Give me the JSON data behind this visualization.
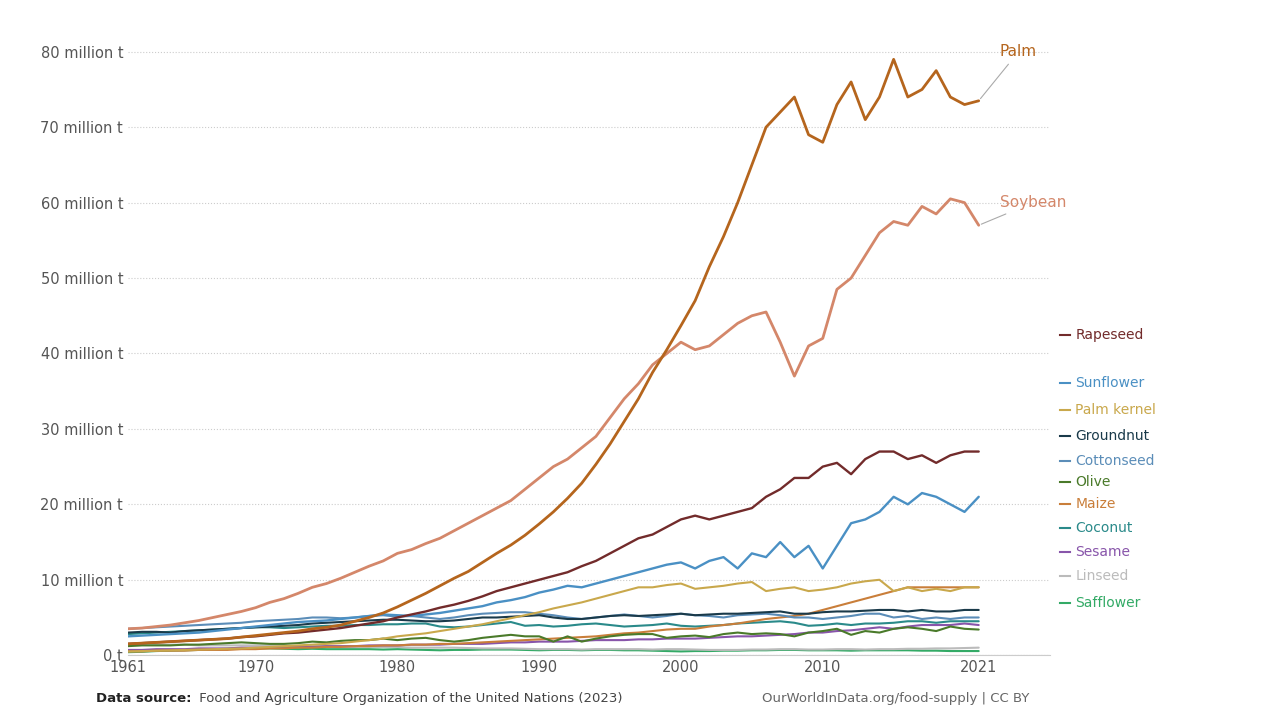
{
  "years": [
    1961,
    1962,
    1963,
    1964,
    1965,
    1966,
    1967,
    1968,
    1969,
    1970,
    1971,
    1972,
    1973,
    1974,
    1975,
    1976,
    1977,
    1978,
    1979,
    1980,
    1981,
    1982,
    1983,
    1984,
    1985,
    1986,
    1987,
    1988,
    1989,
    1990,
    1991,
    1992,
    1993,
    1994,
    1995,
    1996,
    1997,
    1998,
    1999,
    2000,
    2001,
    2002,
    2003,
    2004,
    2005,
    2006,
    2007,
    2008,
    2009,
    2010,
    2011,
    2012,
    2013,
    2014,
    2015,
    2016,
    2017,
    2018,
    2019,
    2020,
    2021
  ],
  "series": {
    "Palm": [
      1.5,
      1.6,
      1.7,
      1.8,
      1.9,
      2.0,
      2.1,
      2.2,
      2.4,
      2.6,
      2.8,
      3.0,
      3.2,
      3.5,
      3.7,
      4.0,
      4.5,
      5.0,
      5.6,
      6.4,
      7.3,
      8.2,
      9.2,
      10.2,
      11.1,
      12.3,
      13.5,
      14.6,
      15.9,
      17.4,
      19.0,
      20.8,
      22.8,
      25.3,
      28.0,
      31.0,
      34.0,
      37.5,
      40.5,
      43.7,
      47.0,
      51.5,
      55.5,
      60.0,
      65.0,
      70.0,
      72.0,
      74.0,
      69.0,
      68.0,
      73.0,
      76.0,
      71.0,
      74.0,
      79.0,
      74.0,
      75.0,
      77.5,
      74.0,
      73.0,
      73.5
    ],
    "Soybean": [
      3.5,
      3.6,
      3.8,
      4.0,
      4.3,
      4.6,
      5.0,
      5.4,
      5.8,
      6.3,
      7.0,
      7.5,
      8.2,
      9.0,
      9.5,
      10.2,
      11.0,
      11.8,
      12.5,
      13.5,
      14.0,
      14.8,
      15.5,
      16.5,
      17.5,
      18.5,
      19.5,
      20.5,
      22.0,
      23.5,
      25.0,
      26.0,
      27.5,
      29.0,
      31.5,
      34.0,
      36.0,
      38.5,
      40.0,
      41.5,
      40.5,
      41.0,
      42.5,
      44.0,
      45.0,
      45.5,
      41.5,
      37.0,
      41.0,
      42.0,
      48.5,
      50.0,
      53.0,
      56.0,
      57.5,
      57.0,
      59.5,
      58.5,
      60.5,
      60.0,
      57.0
    ],
    "Rapeseed": [
      1.5,
      1.6,
      1.7,
      1.8,
      1.9,
      2.0,
      2.1,
      2.2,
      2.4,
      2.5,
      2.7,
      2.9,
      3.0,
      3.2,
      3.4,
      3.6,
      3.9,
      4.2,
      4.5,
      5.0,
      5.4,
      5.8,
      6.3,
      6.7,
      7.2,
      7.8,
      8.5,
      9.0,
      9.5,
      10.0,
      10.5,
      11.0,
      11.8,
      12.5,
      13.5,
      14.5,
      15.5,
      16.0,
      17.0,
      18.0,
      18.5,
      18.0,
      18.5,
      19.0,
      19.5,
      21.0,
      22.0,
      23.5,
      23.5,
      25.0,
      25.5,
      24.0,
      26.0,
      27.0,
      27.0,
      26.0,
      26.5,
      25.5,
      26.5,
      27.0,
      27.0
    ],
    "Sunflower": [
      2.5,
      2.6,
      2.7,
      2.8,
      2.9,
      3.0,
      3.2,
      3.4,
      3.6,
      3.8,
      4.0,
      4.2,
      4.4,
      4.5,
      4.6,
      4.8,
      5.0,
      5.2,
      5.4,
      5.3,
      5.2,
      5.4,
      5.6,
      5.9,
      6.2,
      6.5,
      7.0,
      7.3,
      7.7,
      8.3,
      8.7,
      9.2,
      9.0,
      9.5,
      10.0,
      10.5,
      11.0,
      11.5,
      12.0,
      12.3,
      11.5,
      12.5,
      13.0,
      11.5,
      13.5,
      13.0,
      15.0,
      13.0,
      14.5,
      11.5,
      14.5,
      17.5,
      18.0,
      19.0,
      21.0,
      20.0,
      21.5,
      21.0,
      20.0,
      19.0,
      21.0
    ],
    "Palm kernel": [
      0.5,
      0.55,
      0.6,
      0.65,
      0.7,
      0.75,
      0.8,
      0.85,
      0.9,
      1.0,
      1.1,
      1.2,
      1.3,
      1.4,
      1.5,
      1.6,
      1.8,
      2.0,
      2.2,
      2.5,
      2.7,
      2.9,
      3.2,
      3.5,
      3.8,
      4.1,
      4.5,
      4.9,
      5.3,
      5.7,
      6.2,
      6.6,
      7.0,
      7.5,
      8.0,
      8.5,
      9.0,
      9.0,
      9.3,
      9.5,
      8.8,
      9.0,
      9.2,
      9.5,
      9.7,
      8.5,
      8.8,
      9.0,
      8.5,
      8.7,
      9.0,
      9.5,
      9.8,
      10.0,
      8.5,
      9.0,
      8.5,
      8.8,
      8.5,
      9.0,
      9.0
    ],
    "Groundnut": [
      3.0,
      3.1,
      3.1,
      3.0,
      3.2,
      3.3,
      3.4,
      3.5,
      3.6,
      3.7,
      3.8,
      3.9,
      4.0,
      4.2,
      4.3,
      4.4,
      4.5,
      4.6,
      4.7,
      4.7,
      4.6,
      4.5,
      4.5,
      4.6,
      4.8,
      5.0,
      5.0,
      5.1,
      5.2,
      5.3,
      5.0,
      4.8,
      4.8,
      5.0,
      5.2,
      5.3,
      5.2,
      5.3,
      5.4,
      5.5,
      5.3,
      5.4,
      5.5,
      5.5,
      5.6,
      5.7,
      5.8,
      5.5,
      5.5,
      5.7,
      5.8,
      5.8,
      5.9,
      6.0,
      6.0,
      5.8,
      6.0,
      5.8,
      5.8,
      6.0,
      6.0
    ],
    "Cottonseed": [
      3.5,
      3.6,
      3.7,
      3.8,
      3.9,
      4.0,
      4.1,
      4.2,
      4.3,
      4.5,
      4.6,
      4.7,
      4.8,
      5.0,
      5.0,
      4.9,
      5.0,
      5.2,
      5.3,
      5.1,
      5.2,
      5.0,
      4.8,
      5.0,
      5.3,
      5.5,
      5.6,
      5.7,
      5.7,
      5.5,
      5.3,
      5.0,
      4.8,
      5.0,
      5.2,
      5.4,
      5.2,
      5.0,
      5.2,
      5.5,
      5.3,
      5.2,
      5.0,
      5.3,
      5.4,
      5.5,
      5.3,
      5.0,
      5.0,
      4.8,
      5.0,
      5.2,
      5.5,
      5.5,
      5.0,
      5.2,
      4.8,
      5.0,
      4.8,
      5.0,
      5.0
    ],
    "Olive": [
      1.2,
      1.3,
      1.3,
      1.3,
      1.4,
      1.4,
      1.5,
      1.6,
      1.7,
      1.6,
      1.5,
      1.5,
      1.6,
      1.8,
      1.7,
      1.9,
      2.0,
      2.0,
      2.2,
      2.0,
      2.2,
      2.3,
      2.0,
      1.8,
      2.0,
      2.3,
      2.5,
      2.7,
      2.5,
      2.5,
      1.8,
      2.5,
      1.8,
      2.2,
      2.5,
      2.7,
      2.8,
      2.8,
      2.3,
      2.5,
      2.6,
      2.4,
      2.8,
      3.0,
      2.8,
      2.9,
      2.8,
      2.5,
      3.0,
      3.2,
      3.5,
      2.7,
      3.2,
      3.0,
      3.5,
      3.7,
      3.5,
      3.2,
      3.8,
      3.5,
      3.4
    ],
    "Maize": [
      0.5,
      0.5,
      0.6,
      0.6,
      0.6,
      0.7,
      0.7,
      0.7,
      0.8,
      0.8,
      0.9,
      0.9,
      1.0,
      1.0,
      1.1,
      1.1,
      1.2,
      1.2,
      1.3,
      1.3,
      1.4,
      1.4,
      1.5,
      1.5,
      1.6,
      1.7,
      1.8,
      1.9,
      2.0,
      2.1,
      2.2,
      2.3,
      2.4,
      2.5,
      2.7,
      2.9,
      3.0,
      3.2,
      3.4,
      3.5,
      3.5,
      3.8,
      4.0,
      4.2,
      4.5,
      4.8,
      5.0,
      5.2,
      5.5,
      6.0,
      6.5,
      7.0,
      7.5,
      8.0,
      8.5,
      9.0,
      9.0,
      9.0,
      9.0,
      9.0,
      9.0
    ],
    "Coconut": [
      2.8,
      2.9,
      3.0,
      3.1,
      3.2,
      3.3,
      3.4,
      3.5,
      3.6,
      3.7,
      3.7,
      3.6,
      3.7,
      3.8,
      3.9,
      3.9,
      4.0,
      4.0,
      4.1,
      4.1,
      4.2,
      4.2,
      3.8,
      3.7,
      3.8,
      4.0,
      4.2,
      4.4,
      3.9,
      4.0,
      3.8,
      3.9,
      4.1,
      4.2,
      4.0,
      3.8,
      3.9,
      4.0,
      4.2,
      3.9,
      3.8,
      3.9,
      4.0,
      4.2,
      4.3,
      4.4,
      4.5,
      4.3,
      3.9,
      4.0,
      4.2,
      4.0,
      4.2,
      4.2,
      4.3,
      4.5,
      4.5,
      4.3,
      4.5,
      4.5,
      4.5
    ],
    "Sesame": [
      0.7,
      0.7,
      0.8,
      0.8,
      0.8,
      0.9,
      0.9,
      0.9,
      1.0,
      1.0,
      1.0,
      1.1,
      1.1,
      1.1,
      1.2,
      1.2,
      1.2,
      1.3,
      1.3,
      1.3,
      1.4,
      1.4,
      1.4,
      1.5,
      1.5,
      1.5,
      1.6,
      1.7,
      1.7,
      1.8,
      1.8,
      1.8,
      1.9,
      2.0,
      2.0,
      2.0,
      2.1,
      2.1,
      2.2,
      2.2,
      2.2,
      2.3,
      2.4,
      2.5,
      2.5,
      2.6,
      2.7,
      2.8,
      3.0,
      3.0,
      3.2,
      3.3,
      3.5,
      3.7,
      3.5,
      3.8,
      4.0,
      4.0,
      4.0,
      4.2,
      4.0
    ],
    "Linseed": [
      1.5,
      1.5,
      1.4,
      1.4,
      1.4,
      1.3,
      1.3,
      1.3,
      1.3,
      1.3,
      1.3,
      1.2,
      1.2,
      1.2,
      1.2,
      1.1,
      1.1,
      1.1,
      1.1,
      1.1,
      1.0,
      1.0,
      1.0,
      1.0,
      0.95,
      0.9,
      0.9,
      0.9,
      0.85,
      0.8,
      0.8,
      0.8,
      0.75,
      0.8,
      0.8,
      0.8,
      0.8,
      0.75,
      0.8,
      0.8,
      0.75,
      0.7,
      0.7,
      0.7,
      0.75,
      0.75,
      0.8,
      0.8,
      0.75,
      0.75,
      0.8,
      0.8,
      0.75,
      0.8,
      0.8,
      0.85,
      0.85,
      0.9,
      0.9,
      0.95,
      1.0
    ],
    "Safflower": [
      0.4,
      0.45,
      0.55,
      0.6,
      0.65,
      0.7,
      0.8,
      0.85,
      0.9,
      0.9,
      0.9,
      0.85,
      0.8,
      0.85,
      0.8,
      0.8,
      0.8,
      0.8,
      0.75,
      0.8,
      0.75,
      0.7,
      0.65,
      0.7,
      0.7,
      0.75,
      0.75,
      0.75,
      0.7,
      0.65,
      0.7,
      0.7,
      0.65,
      0.7,
      0.7,
      0.65,
      0.65,
      0.6,
      0.55,
      0.5,
      0.55,
      0.55,
      0.6,
      0.6,
      0.65,
      0.65,
      0.7,
      0.7,
      0.65,
      0.65,
      0.65,
      0.6,
      0.65,
      0.65,
      0.65,
      0.65,
      0.6,
      0.6,
      0.55,
      0.55,
      0.55
    ]
  },
  "colors": {
    "Palm": "#b5651d",
    "Soybean": "#d4876a",
    "Rapeseed": "#722b2b",
    "Sunflower": "#4a90c4",
    "Palm kernel": "#c9a84c",
    "Groundnut": "#1a3a4a",
    "Cottonseed": "#5b8db8",
    "Olive": "#4a7a2a",
    "Maize": "#c97e3a",
    "Coconut": "#2a8a8a",
    "Sesame": "#8855aa",
    "Linseed": "#bbbbbb",
    "Safflower": "#33aa66"
  },
  "yticks": [
    0,
    10,
    20,
    30,
    40,
    50,
    60,
    70,
    80
  ],
  "ytick_labels": [
    "0 t",
    "10 million t",
    "20 million t",
    "30 million t",
    "40 million t",
    "50 million t",
    "60 million t",
    "70 million t",
    "80 million t"
  ],
  "xticks": [
    1961,
    1970,
    1980,
    1990,
    2000,
    2010,
    2021
  ],
  "xlim": [
    1961,
    2026
  ],
  "ylim": [
    0,
    84
  ],
  "background_color": "#ffffff",
  "data_source_bold": "Data source:",
  "data_source_rest": " Food and Agriculture Organization of the United Nations (2023)",
  "credit": "OurWorldInData.org/food-supply | CC BY",
  "legend_order": [
    "Rapeseed",
    "Sunflower",
    "Palm kernel",
    "Groundnut",
    "Cottonseed",
    "Olive",
    "Maize",
    "Coconut",
    "Sesame",
    "Linseed",
    "Safflower"
  ],
  "direct_labels": {
    "Palm": [
      2022.5,
      80
    ],
    "Soybean": [
      2022.5,
      60
    ]
  }
}
